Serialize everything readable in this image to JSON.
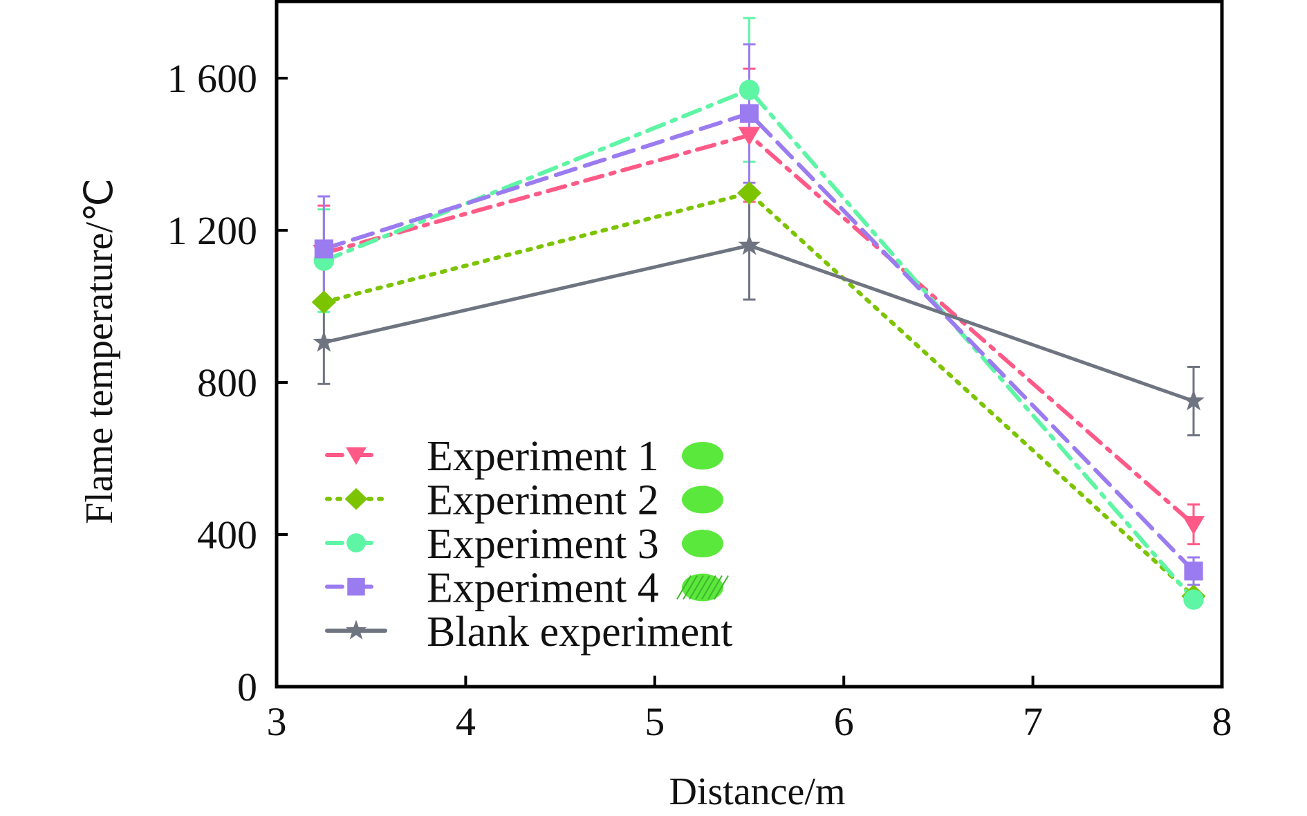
{
  "chart_data": {
    "type": "line",
    "title": "",
    "xlabel": "Distance/m",
    "ylabel": "Flame temperature/℃",
    "xlim": [
      3,
      8
    ],
    "ylim": [
      0,
      1800
    ],
    "xticks": [
      3,
      4,
      5,
      6,
      7,
      8
    ],
    "xtick_labels": [
      "3",
      "4",
      "5",
      "6",
      "7",
      "8"
    ],
    "yticks": [
      0,
      400,
      800,
      1200,
      1600
    ],
    "ytick_labels": [
      "0",
      "400",
      "800",
      "1 200",
      "1 600"
    ],
    "grid": false,
    "legend_position": "bottom-left",
    "x": [
      3.25,
      5.5,
      7.85
    ],
    "series": [
      {
        "name": "Experiment 1",
        "color": "#ff5a87",
        "marker": "triangle-down",
        "linestyle": "dash-dot",
        "values": [
          1140,
          1450,
          427
        ],
        "error": [
          125,
          175,
          52
        ],
        "swatch_color": "#5ae83c"
      },
      {
        "name": "Experiment 2",
        "color": "#7cc400",
        "marker": "diamond",
        "linestyle": "dotted",
        "values": [
          1011,
          1298,
          238
        ],
        "error": [
          0,
          0,
          0
        ],
        "swatch_color": "#5ae83c"
      },
      {
        "name": "Experiment 3",
        "color": "#5ef5a5",
        "marker": "circle",
        "linestyle": "dash-dot",
        "values": [
          1120,
          1569,
          229
        ],
        "error": [
          135,
          189,
          0
        ],
        "swatch_color": "#5ae83c"
      },
      {
        "name": "Experiment 4",
        "color": "#9b7bf0",
        "marker": "square",
        "linestyle": "dashed",
        "values": [
          1151,
          1507,
          304
        ],
        "error": [
          138,
          182,
          36
        ],
        "swatch_color": "#5ae83c"
      },
      {
        "name": "Blank experiment",
        "color": "#6e7480",
        "marker": "star",
        "linestyle": "solid",
        "values": [
          905,
          1160,
          751
        ],
        "error": [
          109,
          142,
          90
        ],
        "swatch_color": null
      }
    ]
  }
}
